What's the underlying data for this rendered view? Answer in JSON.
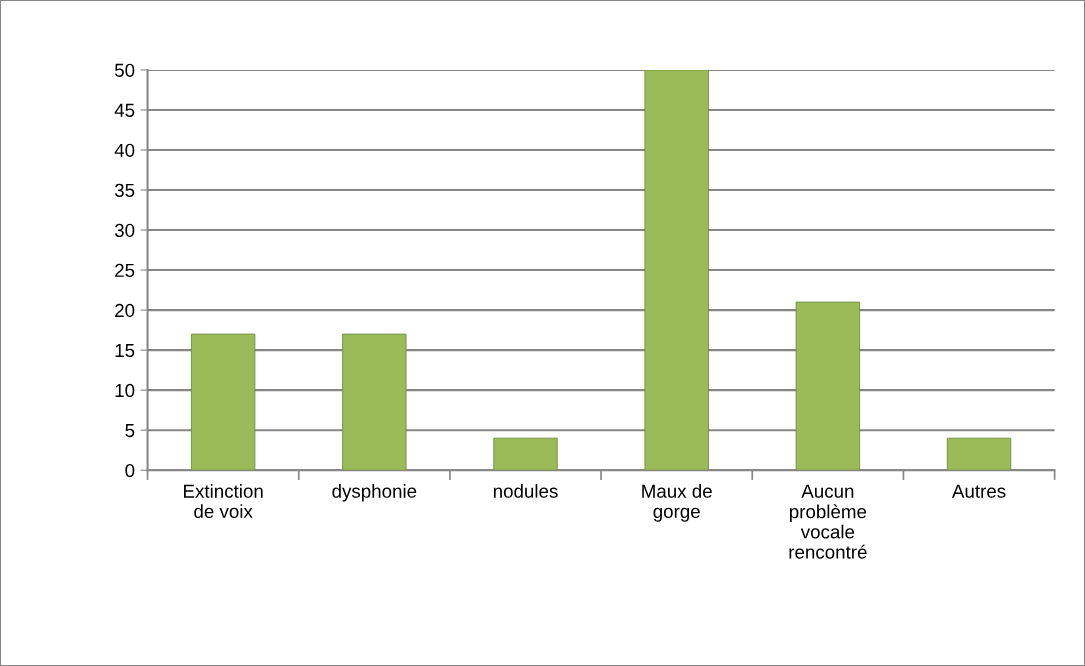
{
  "chart_data": {
    "type": "bar",
    "categories": [
      "Extinction\nde voix",
      "dysphonie",
      "nodules",
      "Maux de\ngorge",
      "Aucun\nproblème\nvocale\nrencontré",
      "Autres"
    ],
    "values": [
      17,
      17,
      4,
      50,
      21,
      4
    ],
    "color": "#9bbb59",
    "ylim": [
      0,
      50
    ],
    "yticks": [
      0,
      5,
      10,
      15,
      20,
      25,
      30,
      35,
      40,
      45,
      50
    ],
    "grid": "y"
  }
}
